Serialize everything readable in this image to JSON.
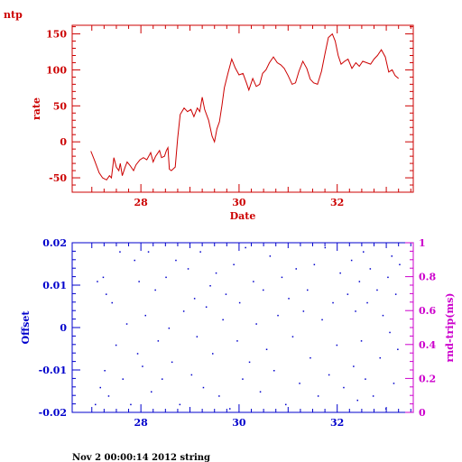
{
  "title": "ntp",
  "footer": "Nov  2 00:00:14 2012 string",
  "colors": {
    "top": "#cc0000",
    "offset": "#0000cc",
    "rtt": "#cc00cc",
    "dots": "#0000cc"
  },
  "chart_data": [
    {
      "type": "line",
      "xlabel": "Date",
      "ylabel": "rate",
      "xlim": [
        26.6,
        33.55
      ],
      "ylim": [
        -70,
        162
      ],
      "xticks": [
        28,
        30,
        32
      ],
      "yticks": [
        -50,
        0,
        50,
        100,
        150
      ],
      "tick_labels_x": [
        "28",
        "30",
        "32"
      ],
      "tick_labels_y": [
        "-50",
        "0",
        "50",
        "100",
        "150"
      ],
      "series": [
        {
          "x": [
            26.98,
            27.05,
            27.15,
            27.22,
            27.3,
            27.36,
            27.4,
            27.45,
            27.5,
            27.55,
            27.58,
            27.62,
            27.68,
            27.72,
            27.78,
            27.85,
            27.9,
            27.98,
            28.05,
            28.12,
            28.2,
            28.25,
            28.3,
            28.38,
            28.42,
            28.48,
            28.52,
            28.55,
            28.58,
            28.62,
            28.7,
            28.75,
            28.8,
            28.88,
            28.95,
            29.02,
            29.08,
            29.15,
            29.2,
            29.25,
            29.3,
            29.38,
            29.45,
            29.5,
            29.55,
            29.6,
            29.65,
            29.7,
            29.78,
            29.85,
            29.92,
            30.0,
            30.08,
            30.15,
            30.2,
            30.28,
            30.35,
            30.42,
            30.48,
            30.55,
            30.62,
            30.7,
            30.78,
            30.85,
            30.92,
            31.0,
            31.08,
            31.15,
            31.22,
            31.3,
            31.38,
            31.45,
            31.52,
            31.6,
            31.68,
            31.75,
            31.82,
            31.9,
            31.96,
            32.02,
            32.08,
            32.15,
            32.22,
            32.3,
            32.38,
            32.45,
            32.52,
            32.6,
            32.68,
            32.75,
            32.82,
            32.9,
            32.98,
            33.05,
            33.12,
            33.18,
            33.25
          ],
          "y": [
            -13,
            -25,
            -43,
            -50,
            -53,
            -47,
            -50,
            -22,
            -35,
            -40,
            -30,
            -47,
            -35,
            -28,
            -33,
            -40,
            -32,
            -25,
            -22,
            -25,
            -15,
            -28,
            -20,
            -12,
            -22,
            -20,
            -12,
            -8,
            -38,
            -40,
            -35,
            5,
            38,
            47,
            42,
            45,
            35,
            47,
            42,
            62,
            45,
            30,
            8,
            0,
            18,
            28,
            50,
            75,
            97,
            115,
            103,
            93,
            95,
            82,
            72,
            88,
            77,
            80,
            95,
            100,
            110,
            118,
            110,
            107,
            102,
            92,
            80,
            82,
            98,
            112,
            102,
            87,
            82,
            80,
            98,
            122,
            145,
            150,
            140,
            120,
            108,
            112,
            115,
            102,
            110,
            105,
            112,
            110,
            108,
            115,
            120,
            128,
            118,
            97,
            100,
            92,
            88
          ]
        }
      ]
    },
    {
      "type": "scatter",
      "xlabel": "",
      "ylabel": "Offset",
      "ylabel_right": "rnd-trip(ms)",
      "xlim": [
        26.6,
        33.55
      ],
      "ylim": [
        -0.02,
        0.02
      ],
      "ylim_right": [
        0,
        1
      ],
      "xticks": [
        28,
        30,
        32
      ],
      "yticks": [
        -0.02,
        -0.01,
        0,
        0.01,
        0.02
      ],
      "yticks_right": [
        0,
        0.2,
        0.4,
        0.6,
        0.8,
        1
      ],
      "tick_labels_x": [
        "28",
        "30",
        "32"
      ],
      "tick_labels_y": [
        "-0.02",
        "-0.01",
        "0",
        "0.01",
        "0.02"
      ],
      "tick_labels_y_right": [
        "0",
        "0.2",
        "0.4",
        "0.6",
        "0.8",
        "1"
      ],
      "points": {
        "x": [
          27.06,
          27.1,
          27.16,
          27.22,
          27.25,
          27.28,
          27.33,
          27.4,
          27.48,
          27.56,
          27.62,
          27.7,
          27.78,
          27.86,
          27.92,
          27.95,
          28.02,
          28.08,
          28.14,
          28.2,
          28.28,
          28.34,
          28.42,
          28.5,
          28.56,
          28.62,
          28.7,
          28.78,
          28.86,
          28.95,
          29.02,
          29.08,
          29.13,
          29.2,
          29.26,
          29.32,
          29.4,
          29.45,
          29.52,
          29.58,
          29.66,
          29.72,
          29.8,
          29.88,
          29.95,
          30.0,
          30.06,
          30.12,
          30.2,
          30.28,
          30.34,
          30.42,
          30.48,
          30.55,
          30.62,
          30.7,
          30.78,
          30.86,
          30.94,
          31.0,
          31.08,
          31.15,
          31.22,
          31.3,
          31.38,
          31.44,
          31.52,
          31.6,
          31.68,
          31.74,
          31.82,
          31.9,
          31.98,
          32.05,
          32.12,
          32.2,
          32.28,
          32.32,
          32.36,
          32.4,
          32.44,
          32.48,
          32.52,
          32.56,
          32.6,
          32.66,
          32.72,
          32.8,
          32.86,
          32.92,
          32.98,
          33.02,
          33.06,
          33.1,
          33.14,
          33.18,
          33.22,
          33.26
        ],
        "y": [
          -0.018,
          0.011,
          -0.014,
          0.012,
          -0.01,
          0.008,
          -0.016,
          0.006,
          -0.004,
          0.018,
          -0.012,
          0.001,
          -0.018,
          0.016,
          -0.006,
          0.011,
          -0.009,
          0.003,
          0.018,
          -0.015,
          0.009,
          -0.003,
          -0.012,
          0.012,
          0.0,
          -0.008,
          0.016,
          -0.018,
          0.004,
          0.014,
          -0.011,
          0.007,
          -0.002,
          0.018,
          -0.014,
          0.005,
          0.01,
          -0.006,
          0.013,
          -0.016,
          0.002,
          0.008,
          -0.019,
          0.015,
          -0.003,
          0.006,
          -0.012,
          0.019,
          -0.008,
          0.011,
          0.001,
          -0.015,
          0.009,
          -0.005,
          0.017,
          -0.01,
          0.003,
          0.012,
          -0.018,
          0.007,
          -0.002,
          0.014,
          -0.013,
          0.004,
          0.009,
          -0.007,
          0.015,
          -0.016,
          0.002,
          0.019,
          -0.011,
          0.006,
          -0.004,
          0.013,
          -0.014,
          0.008,
          0.016,
          -0.009,
          0.004,
          -0.017,
          0.011,
          -0.003,
          0.018,
          -0.012,
          0.006,
          0.014,
          -0.016,
          0.009,
          -0.007,
          0.003,
          -0.019,
          0.012,
          -0.001,
          0.017,
          -0.013,
          0.008,
          -0.005,
          0.015
        ]
      }
    }
  ]
}
